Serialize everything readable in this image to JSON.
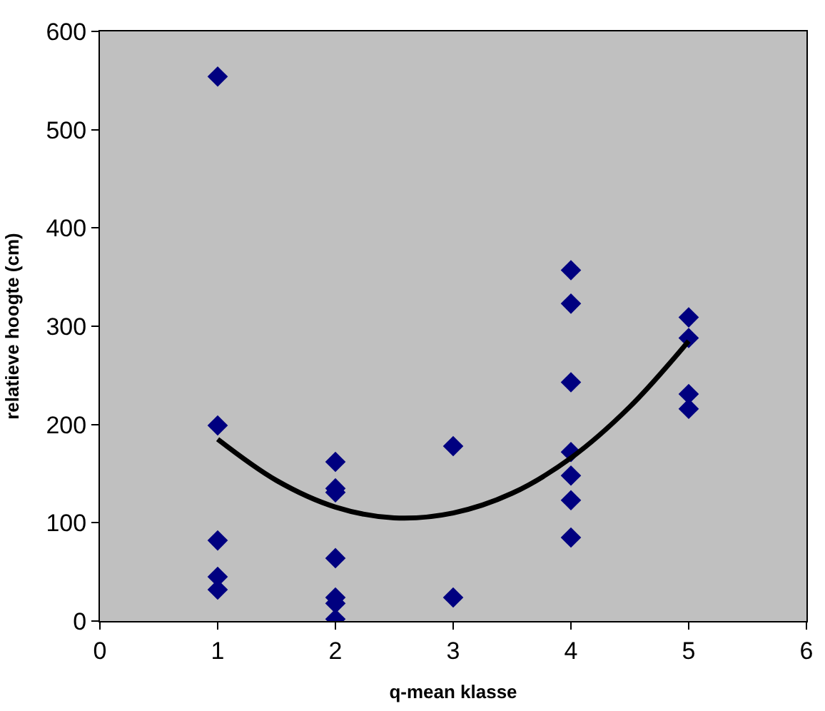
{
  "chart_data": {
    "type": "scatter",
    "xlabel": "q-mean klasse",
    "ylabel": "relatieve hoogte (cm)",
    "xlim": [
      0,
      6
    ],
    "xticks": [
      0,
      1,
      2,
      3,
      4,
      5,
      6
    ],
    "ylim": [
      0,
      600
    ],
    "yticks": [
      0,
      100,
      200,
      300,
      400,
      500,
      600
    ],
    "grid": false,
    "series": [
      {
        "marker": "diamond",
        "color": "#000080",
        "x": [
          1,
          1,
          1,
          1,
          1,
          2,
          2,
          2,
          2,
          2,
          2,
          2,
          3,
          3,
          4,
          4,
          4,
          4,
          4,
          4,
          4,
          5,
          5,
          5,
          5
        ],
        "values": [
          554,
          199,
          82,
          45,
          32,
          162,
          135,
          131,
          64,
          24,
          18,
          2,
          178,
          24,
          357,
          323,
          243,
          172,
          148,
          123,
          85,
          309,
          288,
          231,
          216
        ]
      },
      {
        "type": "line",
        "marker": "none",
        "color": "#000000",
        "x": [
          1,
          1.5,
          2,
          2.5,
          3,
          3.5,
          4,
          4.5,
          5
        ],
        "values": [
          185,
          143,
          116,
          105,
          110,
          130,
          166,
          218,
          285
        ]
      }
    ]
  }
}
